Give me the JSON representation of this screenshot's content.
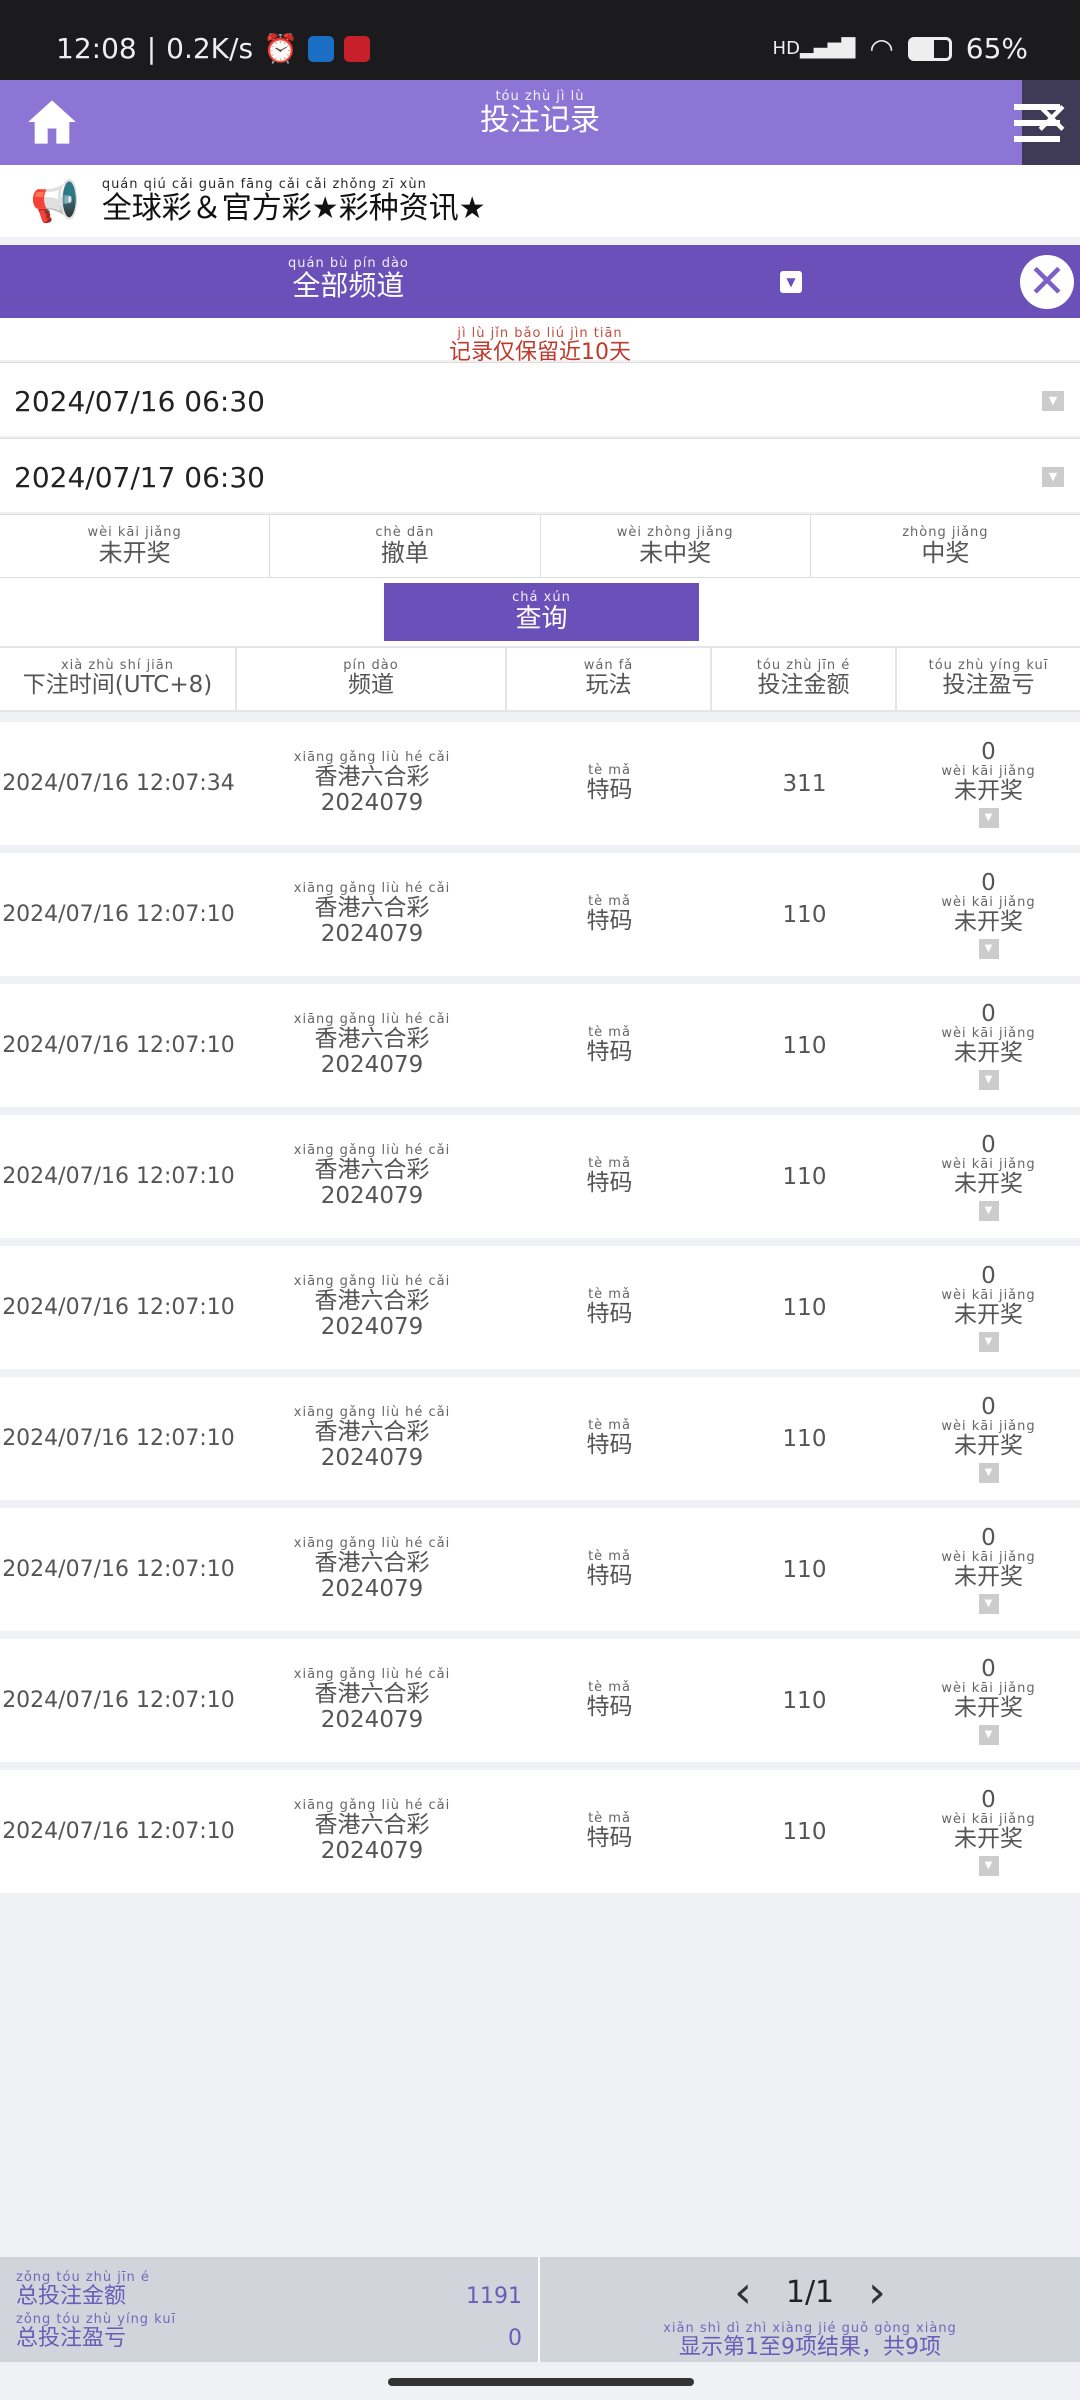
{
  "status": {
    "time": "12:08",
    "speed": "0.2K/s",
    "network": "HD",
    "battery": "65%"
  },
  "header": {
    "title": {
      "text": "投注记录",
      "py": "tóu zhù jì lù"
    },
    "close": "✕"
  },
  "marquee": {
    "text": {
      "text": "全球彩＆官方彩★彩种资讯★",
      "py": "quán qiú cǎi   guān fāng cǎi   cǎi zhǒng zī xùn"
    }
  },
  "channel": {
    "label": {
      "text": "全部频道",
      "py": "quán bù pín dào"
    },
    "close": "✕"
  },
  "notice": {
    "text": "记录仅保留近10天",
    "py": "jì lù jǐn bǎo liú jìn   tiān"
  },
  "dates": {
    "start": "2024/07/16 06:30",
    "end": "2024/07/17 06:30"
  },
  "filters": [
    {
      "text": "未开奖",
      "py": "wèi kāi jiǎng"
    },
    {
      "text": "撤单",
      "py": "chè dān"
    },
    {
      "text": "未中奖",
      "py": "wèi zhòng jiǎng"
    },
    {
      "text": "中奖",
      "py": "zhòng jiǎng"
    }
  ],
  "query": {
    "text": "查询",
    "py": "chá xún"
  },
  "columns": [
    {
      "text": "下注时间(UTC+8)",
      "py": "xià zhù shí jiān"
    },
    {
      "text": "频道",
      "py": "pín dào"
    },
    {
      "text": "玩法",
      "py": "wán fǎ"
    },
    {
      "text": "投注金额",
      "py": "tóu zhù jīn é"
    },
    {
      "text": "投注盈亏",
      "py": "tóu zhù yíng kuī"
    }
  ],
  "rows": [
    {
      "time": "2024/07/16 12:07:34",
      "channel": "香港六合彩",
      "channel_py": "xiāng gǎng liù hé cǎi",
      "issue": "2024079",
      "play": "特码",
      "play_py": "tè mǎ",
      "amount": "311",
      "profit": "0",
      "status": "未开奖",
      "status_py": "wèi kāi jiǎng"
    },
    {
      "time": "2024/07/16 12:07:10",
      "channel": "香港六合彩",
      "channel_py": "xiāng gǎng liù hé cǎi",
      "issue": "2024079",
      "play": "特码",
      "play_py": "tè mǎ",
      "amount": "110",
      "profit": "0",
      "status": "未开奖",
      "status_py": "wèi kāi jiǎng"
    },
    {
      "time": "2024/07/16 12:07:10",
      "channel": "香港六合彩",
      "channel_py": "xiāng gǎng liù hé cǎi",
      "issue": "2024079",
      "play": "特码",
      "play_py": "tè mǎ",
      "amount": "110",
      "profit": "0",
      "status": "未开奖",
      "status_py": "wèi kāi jiǎng"
    },
    {
      "time": "2024/07/16 12:07:10",
      "channel": "香港六合彩",
      "channel_py": "xiāng gǎng liù hé cǎi",
      "issue": "2024079",
      "play": "特码",
      "play_py": "tè mǎ",
      "amount": "110",
      "profit": "0",
      "status": "未开奖",
      "status_py": "wèi kāi jiǎng"
    },
    {
      "time": "2024/07/16 12:07:10",
      "channel": "香港六合彩",
      "channel_py": "xiāng gǎng liù hé cǎi",
      "issue": "2024079",
      "play": "特码",
      "play_py": "tè mǎ",
      "amount": "110",
      "profit": "0",
      "status": "未开奖",
      "status_py": "wèi kāi jiǎng"
    },
    {
      "time": "2024/07/16 12:07:10",
      "channel": "香港六合彩",
      "channel_py": "xiāng gǎng liù hé cǎi",
      "issue": "2024079",
      "play": "特码",
      "play_py": "tè mǎ",
      "amount": "110",
      "profit": "0",
      "status": "未开奖",
      "status_py": "wèi kāi jiǎng"
    },
    {
      "time": "2024/07/16 12:07:10",
      "channel": "香港六合彩",
      "channel_py": "xiāng gǎng liù hé cǎi",
      "issue": "2024079",
      "play": "特码",
      "play_py": "tè mǎ",
      "amount": "110",
      "profit": "0",
      "status": "未开奖",
      "status_py": "wèi kāi jiǎng"
    },
    {
      "time": "2024/07/16 12:07:10",
      "channel": "香港六合彩",
      "channel_py": "xiāng gǎng liù hé cǎi",
      "issue": "2024079",
      "play": "特码",
      "play_py": "tè mǎ",
      "amount": "110",
      "profit": "0",
      "status": "未开奖",
      "status_py": "wèi kāi jiǎng"
    },
    {
      "time": "2024/07/16 12:07:10",
      "channel": "香港六合彩",
      "channel_py": "xiāng gǎng liù hé cǎi",
      "issue": "2024079",
      "play": "特码",
      "play_py": "tè mǎ",
      "amount": "110",
      "profit": "0",
      "status": "未开奖",
      "status_py": "wèi kāi jiǎng"
    }
  ],
  "footer": {
    "total_bet": {
      "text": "总投注金额",
      "py": "zǒng tóu zhù jīn é"
    },
    "total_bet_value": "1191",
    "total_profit": {
      "text": "总投注盈亏",
      "py": "zǒng tóu zhù yíng kuī"
    },
    "total_profit_value": "0",
    "page": "1/1",
    "summary": {
      "text": "显示第1至9项结果，共9项",
      "py": "xiǎn shì dì   zhì   xiàng jié guǒ  gòng   xiàng"
    }
  },
  "colors": {
    "header": "#8c75d4",
    "accent": "#6a50b8",
    "notice": "#c0392b"
  }
}
